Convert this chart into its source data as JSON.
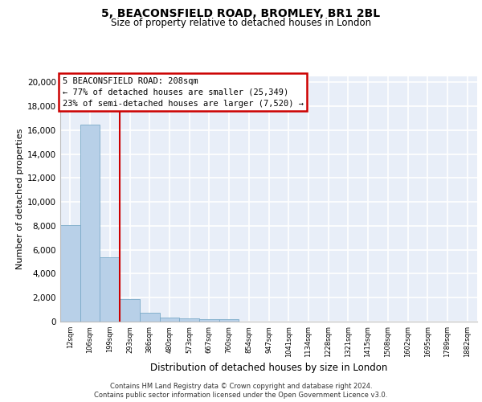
{
  "title1": "5, BEACONSFIELD ROAD, BROMLEY, BR1 2BL",
  "title2": "Size of property relative to detached houses in London",
  "xlabel": "Distribution of detached houses by size in London",
  "ylabel": "Number of detached properties",
  "categories": [
    "12sqm",
    "106sqm",
    "199sqm",
    "293sqm",
    "386sqm",
    "480sqm",
    "573sqm",
    "667sqm",
    "760sqm",
    "854sqm",
    "947sqm",
    "1041sqm",
    "1134sqm",
    "1228sqm",
    "1321sqm",
    "1415sqm",
    "1508sqm",
    "1602sqm",
    "1695sqm",
    "1789sqm",
    "1882sqm"
  ],
  "values": [
    8050,
    16500,
    5350,
    1850,
    750,
    350,
    270,
    210,
    200,
    0,
    0,
    0,
    0,
    0,
    0,
    0,
    0,
    0,
    0,
    0,
    0
  ],
  "bar_color": "#b8d0e8",
  "bar_edge_color": "#7aaac8",
  "vline_x": 2.5,
  "annotation_line1": "5 BEACONSFIELD ROAD: 208sqm",
  "annotation_line2": "← 77% of detached houses are smaller (25,349)",
  "annotation_line3": "23% of semi-detached houses are larger (7,520) →",
  "annotation_box_facecolor": "white",
  "annotation_box_edgecolor": "#cc0000",
  "vline_color": "#cc0000",
  "ylim": [
    0,
    20500
  ],
  "yticks": [
    0,
    2000,
    4000,
    6000,
    8000,
    10000,
    12000,
    14000,
    16000,
    18000,
    20000
  ],
  "background_color": "#e8eef8",
  "grid_color": "white",
  "footer1": "Contains HM Land Registry data © Crown copyright and database right 2024.",
  "footer2": "Contains public sector information licensed under the Open Government Licence v3.0."
}
